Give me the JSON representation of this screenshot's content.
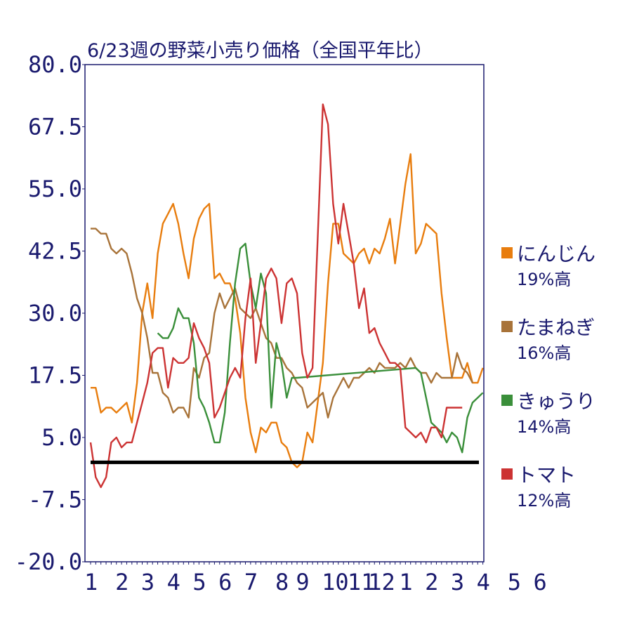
{
  "chart_data": {
    "type": "line",
    "title": "6/23週の野菜小売り価格（全国平年比）",
    "ylim": [
      -20,
      80
    ],
    "yticks": [
      "80.0",
      "67.5",
      "55.0",
      "42.5",
      "30.0",
      "17.5",
      "5.0",
      "-7.5",
      "-20.0"
    ],
    "xticks": [
      {
        "label": "1",
        "index": 0
      },
      {
        "label": "2",
        "index": 6
      },
      {
        "label": "3",
        "index": 11
      },
      {
        "label": "4",
        "index": 16
      },
      {
        "label": "5",
        "index": 21
      },
      {
        "label": "6",
        "index": 26
      },
      {
        "label": "7",
        "index": 31
      },
      {
        "label": "8",
        "index": 37
      },
      {
        "label": "9",
        "index": 41
      },
      {
        "label": "10",
        "index": 46
      },
      {
        "label": "11",
        "index": 51
      },
      {
        "label": "12",
        "index": 55
      },
      {
        "label": "1",
        "index": 61
      },
      {
        "label": "2",
        "index": 66
      },
      {
        "label": "3",
        "index": 71
      },
      {
        "label": "4",
        "index": 76
      },
      {
        "label": "5",
        "index": 82
      },
      {
        "label": "6",
        "index": 87
      }
    ],
    "n_points": 93,
    "baseline": 0,
    "series": [
      {
        "name": "にんじん",
        "color": "#e87d0e",
        "legend_value": "19%高",
        "points": [
          [
            0,
            15
          ],
          [
            1,
            15
          ],
          [
            2,
            10
          ],
          [
            3,
            11
          ],
          [
            4,
            11
          ],
          [
            5,
            10
          ],
          [
            6,
            11
          ],
          [
            7,
            12
          ],
          [
            8,
            8
          ],
          [
            9,
            16
          ],
          [
            10,
            30
          ],
          [
            11,
            36
          ],
          [
            12,
            29
          ],
          [
            13,
            42
          ],
          [
            14,
            48
          ],
          [
            15,
            50
          ],
          [
            16,
            52
          ],
          [
            17,
            48
          ],
          [
            18,
            42
          ],
          [
            19,
            37
          ],
          [
            20,
            45
          ],
          [
            21,
            49
          ],
          [
            22,
            51
          ],
          [
            23,
            52
          ],
          [
            24,
            37
          ],
          [
            25,
            38
          ],
          [
            26,
            36
          ],
          [
            27,
            36
          ],
          [
            28,
            33
          ],
          [
            29,
            26
          ],
          [
            30,
            13
          ],
          [
            31,
            6
          ],
          [
            32,
            2
          ],
          [
            33,
            7
          ],
          [
            34,
            6
          ],
          [
            35,
            8
          ],
          [
            36,
            8
          ],
          [
            37,
            4
          ],
          [
            38,
            3
          ],
          [
            39,
            0
          ],
          [
            40,
            -1
          ],
          [
            41,
            0
          ],
          [
            42,
            6
          ],
          [
            43,
            4
          ],
          [
            44,
            12
          ],
          [
            45,
            20
          ],
          [
            46,
            36
          ],
          [
            47,
            48
          ],
          [
            48,
            48
          ],
          [
            49,
            42
          ],
          [
            50,
            41
          ],
          [
            51,
            40
          ],
          [
            52,
            42
          ],
          [
            53,
            43
          ],
          [
            54,
            40
          ],
          [
            55,
            43
          ],
          [
            56,
            42
          ],
          [
            57,
            45
          ],
          [
            58,
            49
          ],
          [
            59,
            40
          ],
          [
            60,
            48
          ],
          [
            61,
            56
          ],
          [
            62,
            62
          ],
          [
            63,
            42
          ],
          [
            64,
            44
          ],
          [
            65,
            48
          ],
          [
            66,
            47
          ],
          [
            67,
            46
          ],
          [
            68,
            34
          ],
          [
            69,
            25
          ],
          [
            70,
            17
          ],
          [
            71,
            17
          ],
          [
            72,
            17
          ],
          [
            73,
            20
          ],
          [
            74,
            16
          ],
          [
            75,
            16
          ],
          [
            76,
            19
          ]
        ]
      },
      {
        "name": "たまねぎ",
        "color": "#a87339",
        "legend_value": "16%高",
        "points": [
          [
            0,
            47
          ],
          [
            1,
            47
          ],
          [
            2,
            46
          ],
          [
            3,
            46
          ],
          [
            4,
            43
          ],
          [
            5,
            42
          ],
          [
            6,
            43
          ],
          [
            7,
            42
          ],
          [
            8,
            38
          ],
          [
            9,
            33
          ],
          [
            10,
            30
          ],
          [
            11,
            25
          ],
          [
            12,
            18
          ],
          [
            13,
            18
          ],
          [
            14,
            14
          ],
          [
            15,
            13
          ],
          [
            16,
            10
          ],
          [
            17,
            11
          ],
          [
            18,
            11
          ],
          [
            19,
            9
          ],
          [
            20,
            19
          ],
          [
            21,
            17
          ],
          [
            22,
            21
          ],
          [
            23,
            22
          ],
          [
            24,
            30
          ],
          [
            25,
            34
          ],
          [
            26,
            31
          ],
          [
            27,
            33
          ],
          [
            28,
            35
          ],
          [
            29,
            31
          ],
          [
            30,
            30
          ],
          [
            31,
            29
          ],
          [
            32,
            31
          ],
          [
            33,
            28
          ],
          [
            34,
            25
          ],
          [
            35,
            24
          ],
          [
            36,
            21
          ],
          [
            37,
            21
          ],
          [
            38,
            19
          ],
          [
            39,
            18
          ],
          [
            40,
            16
          ],
          [
            41,
            15
          ],
          [
            42,
            11
          ],
          [
            43,
            12
          ],
          [
            44,
            13
          ],
          [
            45,
            14
          ],
          [
            46,
            9
          ],
          [
            47,
            13
          ],
          [
            48,
            15
          ],
          [
            49,
            17
          ],
          [
            50,
            15
          ],
          [
            51,
            17
          ],
          [
            52,
            17
          ],
          [
            53,
            18
          ],
          [
            54,
            19
          ],
          [
            55,
            18
          ],
          [
            56,
            20
          ],
          [
            57,
            19
          ],
          [
            58,
            19
          ],
          [
            59,
            19
          ],
          [
            60,
            20
          ],
          [
            61,
            19
          ],
          [
            62,
            21
          ],
          [
            63,
            19
          ],
          [
            64,
            18
          ],
          [
            65,
            18
          ],
          [
            66,
            16
          ],
          [
            67,
            18
          ],
          [
            68,
            17
          ],
          [
            69,
            17
          ],
          [
            70,
            17
          ],
          [
            71,
            22
          ],
          [
            72,
            19
          ],
          [
            73,
            18
          ],
          [
            74,
            16
          ]
        ]
      },
      {
        "name": "きゅうり",
        "color": "#3a8f3a",
        "legend_value": "14%高",
        "points": [
          [
            13,
            26
          ],
          [
            14,
            25
          ],
          [
            15,
            25
          ],
          [
            16,
            27
          ],
          [
            17,
            31
          ],
          [
            18,
            29
          ],
          [
            19,
            29
          ],
          [
            20,
            24
          ],
          [
            21,
            13
          ],
          [
            22,
            11
          ],
          [
            23,
            8
          ],
          [
            24,
            4
          ],
          [
            25,
            4
          ],
          [
            26,
            10
          ],
          [
            27,
            24
          ],
          [
            28,
            36
          ],
          [
            29,
            43
          ],
          [
            30,
            44
          ],
          [
            31,
            36
          ],
          [
            32,
            31
          ],
          [
            33,
            38
          ],
          [
            34,
            34
          ],
          [
            35,
            11
          ],
          [
            36,
            24
          ],
          [
            37,
            20
          ],
          [
            38,
            13
          ],
          [
            39,
            17
          ],
          [
            40,
            17
          ],
          [
            63,
            19
          ],
          [
            64,
            18
          ],
          [
            65,
            13
          ],
          [
            66,
            8
          ],
          [
            67,
            7
          ],
          [
            68,
            6
          ],
          [
            69,
            4
          ],
          [
            70,
            6
          ],
          [
            71,
            5
          ],
          [
            72,
            2
          ],
          [
            73,
            9
          ],
          [
            74,
            12
          ],
          [
            75,
            13
          ],
          [
            76,
            14
          ]
        ]
      },
      {
        "name": "トマト",
        "color": "#cc3333",
        "legend_value": "12%高",
        "points": [
          [
            0,
            4
          ],
          [
            1,
            -3
          ],
          [
            2,
            -5
          ],
          [
            3,
            -3
          ],
          [
            4,
            4
          ],
          [
            5,
            5
          ],
          [
            6,
            3
          ],
          [
            7,
            4
          ],
          [
            8,
            4
          ],
          [
            9,
            8
          ],
          [
            10,
            12
          ],
          [
            11,
            16
          ],
          [
            12,
            22
          ],
          [
            13,
            23
          ],
          [
            14,
            23
          ],
          [
            15,
            15
          ],
          [
            16,
            21
          ],
          [
            17,
            20
          ],
          [
            18,
            20
          ],
          [
            19,
            21
          ],
          [
            20,
            28
          ],
          [
            21,
            25
          ],
          [
            22,
            23
          ],
          [
            23,
            20
          ],
          [
            24,
            9
          ],
          [
            25,
            11
          ],
          [
            26,
            14
          ],
          [
            27,
            17
          ],
          [
            28,
            19
          ],
          [
            29,
            17
          ],
          [
            30,
            29
          ],
          [
            31,
            37
          ],
          [
            32,
            20
          ],
          [
            33,
            28
          ],
          [
            34,
            37
          ],
          [
            35,
            39
          ],
          [
            36,
            37
          ],
          [
            37,
            28
          ],
          [
            38,
            36
          ],
          [
            39,
            37
          ],
          [
            40,
            34
          ],
          [
            41,
            22
          ],
          [
            42,
            17
          ],
          [
            43,
            19
          ],
          [
            44,
            45
          ],
          [
            45,
            72
          ],
          [
            46,
            68
          ],
          [
            47,
            52
          ],
          [
            48,
            44
          ],
          [
            49,
            52
          ],
          [
            50,
            46
          ],
          [
            51,
            40
          ],
          [
            52,
            31
          ],
          [
            53,
            35
          ],
          [
            54,
            26
          ],
          [
            55,
            27
          ],
          [
            56,
            24
          ],
          [
            57,
            22
          ],
          [
            58,
            20
          ],
          [
            59,
            20
          ],
          [
            60,
            19
          ],
          [
            61,
            7
          ],
          [
            62,
            6
          ],
          [
            63,
            5
          ],
          [
            64,
            6
          ],
          [
            65,
            4
          ],
          [
            66,
            7
          ],
          [
            67,
            7
          ],
          [
            68,
            5
          ],
          [
            69,
            11
          ],
          [
            70,
            11
          ],
          [
            71,
            11
          ],
          [
            72,
            11
          ]
        ]
      }
    ]
  }
}
